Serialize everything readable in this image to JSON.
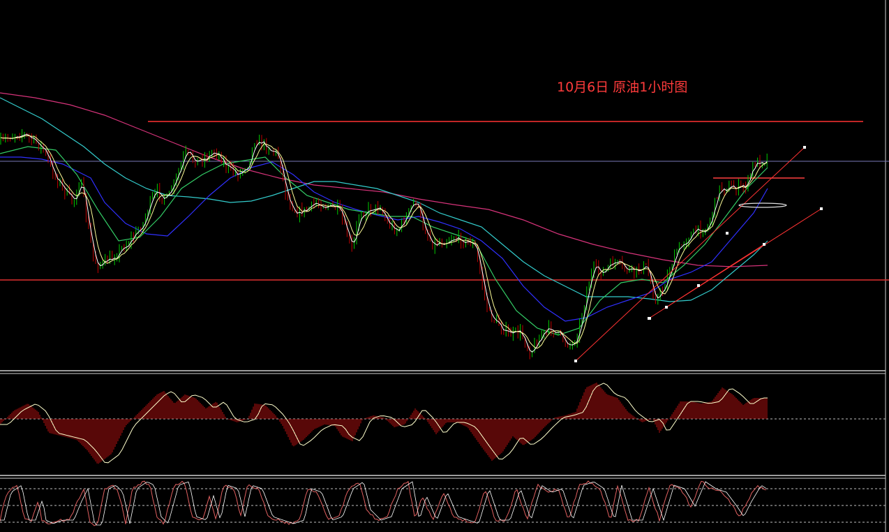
{
  "chart_data": {
    "type": "line",
    "title": "10月6日 原油1小时图",
    "colors": {
      "background": "#000000",
      "price_up": "#00cc00",
      "price_down": "#c00000",
      "fast_ma": "#ffffff",
      "ma_yellow": "#ffff99",
      "ma_green": "#33cc66",
      "ma_blue": "#3030ff",
      "ma_cyan": "#33cccc",
      "ma_magenta": "#d6337a",
      "level_line": "#ff3333",
      "current_price_line": "#8080c0",
      "histogram": "#b01010",
      "oscillator_line": "#ffffcc",
      "stochastic_line": "#e06060",
      "panel_separator": "#cfcfcf",
      "dotted_level": "#c0c0c0"
    },
    "price_path": [
      [
        0,
        205
      ],
      [
        15,
        195
      ],
      [
        30,
        190
      ],
      [
        45,
        200
      ],
      [
        60,
        210
      ],
      [
        75,
        245
      ],
      [
        90,
        270
      ],
      [
        105,
        290
      ],
      [
        115,
        255
      ],
      [
        125,
        320
      ],
      [
        135,
        375
      ],
      [
        145,
        380
      ],
      [
        160,
        370
      ],
      [
        175,
        355
      ],
      [
        190,
        340
      ],
      [
        205,
        320
      ],
      [
        215,
        290
      ],
      [
        225,
        275
      ],
      [
        240,
        285
      ],
      [
        255,
        250
      ],
      [
        265,
        220
      ],
      [
        280,
        230
      ],
      [
        295,
        225
      ],
      [
        310,
        215
      ],
      [
        325,
        240
      ],
      [
        340,
        250
      ],
      [
        355,
        235
      ],
      [
        365,
        200
      ],
      [
        375,
        205
      ],
      [
        390,
        215
      ],
      [
        400,
        225
      ],
      [
        410,
        280
      ],
      [
        425,
        305
      ],
      [
        440,
        300
      ],
      [
        455,
        290
      ],
      [
        470,
        295
      ],
      [
        485,
        300
      ],
      [
        495,
        330
      ],
      [
        505,
        360
      ],
      [
        515,
        305
      ],
      [
        530,
        300
      ],
      [
        545,
        295
      ],
      [
        555,
        320
      ],
      [
        570,
        330
      ],
      [
        585,
        305
      ],
      [
        595,
        285
      ],
      [
        605,
        320
      ],
      [
        620,
        350
      ],
      [
        635,
        345
      ],
      [
        650,
        340
      ],
      [
        665,
        345
      ],
      [
        680,
        350
      ],
      [
        690,
        400
      ],
      [
        700,
        450
      ],
      [
        715,
        465
      ],
      [
        730,
        480
      ],
      [
        745,
        475
      ],
      [
        760,
        505
      ],
      [
        775,
        480
      ],
      [
        790,
        470
      ],
      [
        805,
        485
      ],
      [
        820,
        495
      ],
      [
        830,
        470
      ],
      [
        840,
        420
      ],
      [
        850,
        385
      ],
      [
        865,
        390
      ],
      [
        880,
        375
      ],
      [
        895,
        385
      ],
      [
        910,
        390
      ],
      [
        925,
        380
      ],
      [
        940,
        430
      ],
      [
        950,
        415
      ],
      [
        960,
        385
      ],
      [
        970,
        360
      ],
      [
        985,
        340
      ],
      [
        1000,
        330
      ],
      [
        1015,
        325
      ],
      [
        1030,
        270
      ],
      [
        1045,
        268
      ],
      [
        1060,
        270
      ],
      [
        1070,
        265
      ],
      [
        1080,
        235
      ],
      [
        1090,
        230
      ],
      [
        1100,
        228
      ]
    ],
    "moving_averages": {
      "magenta": [
        [
          0,
          133
        ],
        [
          50,
          140
        ],
        [
          100,
          150
        ],
        [
          150,
          165
        ],
        [
          200,
          185
        ],
        [
          250,
          205
        ],
        [
          300,
          225
        ],
        [
          350,
          242
        ],
        [
          400,
          255
        ],
        [
          450,
          265
        ],
        [
          500,
          270
        ],
        [
          550,
          275
        ],
        [
          600,
          285
        ],
        [
          650,
          293
        ],
        [
          700,
          300
        ],
        [
          750,
          315
        ],
        [
          800,
          335
        ],
        [
          850,
          350
        ],
        [
          900,
          362
        ],
        [
          950,
          372
        ],
        [
          1000,
          380
        ],
        [
          1050,
          382
        ],
        [
          1100,
          380
        ]
      ],
      "cyan": [
        [
          0,
          140
        ],
        [
          30,
          155
        ],
        [
          60,
          170
        ],
        [
          90,
          190
        ],
        [
          120,
          210
        ],
        [
          150,
          235
        ],
        [
          180,
          255
        ],
        [
          210,
          270
        ],
        [
          240,
          280
        ],
        [
          270,
          282
        ],
        [
          300,
          285
        ],
        [
          330,
          290
        ],
        [
          360,
          288
        ],
        [
          390,
          280
        ],
        [
          420,
          270
        ],
        [
          450,
          260
        ],
        [
          480,
          260
        ],
        [
          510,
          265
        ],
        [
          540,
          270
        ],
        [
          570,
          280
        ],
        [
          600,
          290
        ],
        [
          630,
          305
        ],
        [
          660,
          315
        ],
        [
          690,
          325
        ],
        [
          720,
          350
        ],
        [
          750,
          375
        ],
        [
          780,
          395
        ],
        [
          810,
          410
        ],
        [
          840,
          425
        ],
        [
          870,
          425
        ],
        [
          900,
          425
        ],
        [
          930,
          428
        ],
        [
          960,
          432
        ],
        [
          990,
          430
        ],
        [
          1020,
          415
        ],
        [
          1050,
          390
        ],
        [
          1080,
          365
        ],
        [
          1100,
          345
        ]
      ],
      "blue": [
        [
          0,
          225
        ],
        [
          30,
          225
        ],
        [
          60,
          228
        ],
        [
          90,
          235
        ],
        [
          110,
          245
        ],
        [
          130,
          255
        ],
        [
          150,
          290
        ],
        [
          180,
          320
        ],
        [
          210,
          335
        ],
        [
          240,
          338
        ],
        [
          270,
          310
        ],
        [
          300,
          280
        ],
        [
          330,
          255
        ],
        [
          360,
          240
        ],
        [
          390,
          232
        ],
        [
          420,
          250
        ],
        [
          450,
          275
        ],
        [
          480,
          290
        ],
        [
          510,
          300
        ],
        [
          540,
          308
        ],
        [
          570,
          315
        ],
        [
          600,
          310
        ],
        [
          630,
          318
        ],
        [
          660,
          328
        ],
        [
          690,
          345
        ],
        [
          720,
          370
        ],
        [
          750,
          410
        ],
        [
          780,
          440
        ],
        [
          810,
          460
        ],
        [
          840,
          455
        ],
        [
          870,
          440
        ],
        [
          900,
          430
        ],
        [
          930,
          420
        ],
        [
          960,
          400
        ],
        [
          990,
          390
        ],
        [
          1020,
          375
        ],
        [
          1050,
          340
        ],
        [
          1080,
          305
        ],
        [
          1100,
          270
        ]
      ],
      "green": [
        [
          0,
          220
        ],
        [
          40,
          210
        ],
        [
          80,
          215
        ],
        [
          110,
          250
        ],
        [
          140,
          300
        ],
        [
          170,
          345
        ],
        [
          200,
          340
        ],
        [
          230,
          310
        ],
        [
          260,
          270
        ],
        [
          290,
          250
        ],
        [
          320,
          235
        ],
        [
          350,
          230
        ],
        [
          380,
          225
        ],
        [
          410,
          255
        ],
        [
          440,
          280
        ],
        [
          470,
          290
        ],
        [
          500,
          300
        ],
        [
          530,
          305
        ],
        [
          560,
          310
        ],
        [
          590,
          310
        ],
        [
          620,
          325
        ],
        [
          650,
          335
        ],
        [
          680,
          345
        ],
        [
          710,
          400
        ],
        [
          740,
          445
        ],
        [
          770,
          470
        ],
        [
          800,
          480
        ],
        [
          830,
          470
        ],
        [
          860,
          430
        ],
        [
          890,
          405
        ],
        [
          920,
          400
        ],
        [
          950,
          405
        ],
        [
          980,
          380
        ],
        [
          1010,
          350
        ],
        [
          1040,
          310
        ],
        [
          1070,
          270
        ],
        [
          1100,
          240
        ]
      ]
    },
    "levels": [
      {
        "x0": 212,
        "x1": 1237,
        "y": 174,
        "color": "#ff3333"
      },
      {
        "x0": 0,
        "x1": 1274,
        "y": 401,
        "color": "#e03030"
      },
      {
        "x0": 0,
        "x1": 1274,
        "y": 231,
        "color": "#7878b8"
      },
      {
        "x0": 1022,
        "x1": 1153,
        "y": 255,
        "color": "#ff4040"
      }
    ],
    "trend_lines": [
      {
        "from": [
          825,
          517
        ],
        "to": [
          1153,
          211
        ]
      },
      {
        "from": [
          930,
          456
        ],
        "to": [
          1177,
          299
        ]
      },
      {
        "from": [
          955,
          440
        ],
        "to": [
          1095,
          350
        ]
      }
    ],
    "ellipse": {
      "cx": 1093,
      "cy": 294,
      "rx": 34,
      "ry": 3
    },
    "macd_histogram": [
      [
        0,
        608
      ],
      [
        20,
        588
      ],
      [
        40,
        578
      ],
      [
        55,
        590
      ],
      [
        70,
        620
      ],
      [
        90,
        625
      ],
      [
        110,
        630
      ],
      [
        125,
        645
      ],
      [
        140,
        665
      ],
      [
        160,
        650
      ],
      [
        180,
        610
      ],
      [
        200,
        590
      ],
      [
        215,
        575
      ],
      [
        225,
        565
      ],
      [
        235,
        560
      ],
      [
        250,
        578
      ],
      [
        265,
        565
      ],
      [
        280,
        570
      ],
      [
        295,
        585
      ],
      [
        310,
        575
      ],
      [
        325,
        600
      ],
      [
        340,
        605
      ],
      [
        355,
        600
      ],
      [
        365,
        578
      ],
      [
        380,
        580
      ],
      [
        395,
        595
      ],
      [
        405,
        610
      ],
      [
        420,
        640
      ],
      [
        435,
        630
      ],
      [
        450,
        615
      ],
      [
        465,
        608
      ],
      [
        480,
        610
      ],
      [
        490,
        625
      ],
      [
        505,
        632
      ],
      [
        520,
        600
      ],
      [
        535,
        595
      ],
      [
        550,
        598
      ],
      [
        565,
        612
      ],
      [
        580,
        608
      ],
      [
        595,
        585
      ],
      [
        610,
        600
      ],
      [
        625,
        622
      ],
      [
        640,
        605
      ],
      [
        655,
        605
      ],
      [
        670,
        612
      ],
      [
        690,
        640
      ],
      [
        705,
        660
      ],
      [
        720,
        648
      ],
      [
        735,
        625
      ],
      [
        750,
        638
      ],
      [
        765,
        628
      ],
      [
        780,
        612
      ],
      [
        795,
        598
      ],
      [
        810,
        595
      ],
      [
        825,
        590
      ],
      [
        840,
        555
      ],
      [
        855,
        548
      ],
      [
        870,
        565
      ],
      [
        885,
        570
      ],
      [
        900,
        590
      ],
      [
        920,
        605
      ],
      [
        935,
        600
      ],
      [
        945,
        620
      ],
      [
        960,
        598
      ],
      [
        975,
        575
      ],
      [
        990,
        575
      ],
      [
        1005,
        578
      ],
      [
        1020,
        575
      ],
      [
        1035,
        555
      ],
      [
        1050,
        565
      ],
      [
        1065,
        580
      ],
      [
        1080,
        570
      ],
      [
        1095,
        570
      ]
    ],
    "stochastic": [
      [
        0,
        745
      ],
      [
        10,
        705
      ],
      [
        25,
        695
      ],
      [
        35,
        745
      ],
      [
        45,
        745
      ],
      [
        55,
        715
      ],
      [
        60,
        745
      ],
      [
        70,
        750
      ],
      [
        85,
        745
      ],
      [
        100,
        745
      ],
      [
        110,
        720
      ],
      [
        120,
        700
      ],
      [
        130,
        752
      ],
      [
        140,
        752
      ],
      [
        150,
        700
      ],
      [
        160,
        695
      ],
      [
        170,
        705
      ],
      [
        180,
        750
      ],
      [
        190,
        700
      ],
      [
        205,
        690
      ],
      [
        215,
        695
      ],
      [
        225,
        740
      ],
      [
        235,
        750
      ],
      [
        250,
        695
      ],
      [
        265,
        690
      ],
      [
        275,
        740
      ],
      [
        290,
        745
      ],
      [
        300,
        710
      ],
      [
        310,
        745
      ],
      [
        320,
        695
      ],
      [
        335,
        700
      ],
      [
        345,
        740
      ],
      [
        355,
        695
      ],
      [
        370,
        700
      ],
      [
        385,
        740
      ],
      [
        400,
        745
      ],
      [
        415,
        750
      ],
      [
        430,
        745
      ],
      [
        440,
        700
      ],
      [
        455,
        705
      ],
      [
        470,
        745
      ],
      [
        485,
        740
      ],
      [
        500,
        700
      ],
      [
        515,
        690
      ],
      [
        525,
        730
      ],
      [
        540,
        745
      ],
      [
        555,
        740
      ],
      [
        570,
        700
      ],
      [
        585,
        690
      ],
      [
        595,
        745
      ],
      [
        605,
        710
      ],
      [
        620,
        745
      ],
      [
        635,
        705
      ],
      [
        650,
        740
      ],
      [
        665,
        745
      ],
      [
        680,
        750
      ],
      [
        695,
        700
      ],
      [
        710,
        745
      ],
      [
        725,
        745
      ],
      [
        740,
        700
      ],
      [
        755,
        745
      ],
      [
        770,
        695
      ],
      [
        785,
        705
      ],
      [
        800,
        700
      ],
      [
        815,
        745
      ],
      [
        830,
        695
      ],
      [
        845,
        690
      ],
      [
        860,
        700
      ],
      [
        875,
        745
      ],
      [
        885,
        695
      ],
      [
        900,
        745
      ],
      [
        915,
        745
      ],
      [
        930,
        700
      ],
      [
        945,
        745
      ],
      [
        960,
        695
      ],
      [
        975,
        700
      ],
      [
        990,
        725
      ],
      [
        1005,
        690
      ],
      [
        1020,
        700
      ],
      [
        1035,
        705
      ],
      [
        1050,
        725
      ],
      [
        1060,
        740
      ],
      [
        1070,
        720
      ],
      [
        1085,
        695
      ],
      [
        1100,
        705
      ]
    ]
  }
}
